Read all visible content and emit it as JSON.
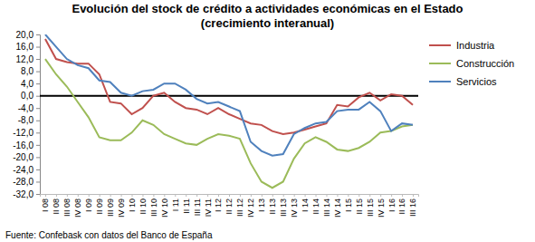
{
  "chart_data": {
    "type": "line",
    "title": "Evolución del  stock de crédito a actividades económicas en el Estado",
    "subtitle": "(crecimiento interanual)",
    "source": "Fuente: Confebask con datos del Banco de España",
    "categories": [
      "I 08",
      "II 08",
      "III 08",
      "IV 08",
      "I 09",
      "II 09",
      "III 09",
      "IV 09",
      "I 10",
      "II 10",
      "III 10",
      "IV 10",
      "I 11",
      "II 11",
      "III 11",
      "IV 11",
      "I 12",
      "II 12",
      "III 12",
      "IV 12",
      "I 13",
      "II 13",
      "III 13",
      "IV 13",
      "I 14",
      "II 14",
      "III 14",
      "IV 14",
      "I 15",
      "II 15",
      "III 15",
      "IV 15",
      "I 16",
      "II 16",
      "III 16"
    ],
    "series": [
      {
        "name": "Industria",
        "color": "#c0504d",
        "values": [
          18.5,
          12,
          11,
          10.5,
          10.5,
          7,
          -2,
          -2.5,
          -6,
          -4,
          0,
          1,
          -2,
          -4,
          -4.5,
          -6,
          -4,
          -6,
          -7.5,
          -9,
          -9.5,
          -11.5,
          -12.5,
          -12,
          -11,
          -10,
          -9,
          -3,
          -3.5,
          -0.5,
          1,
          -1.5,
          0.5,
          0,
          -3
        ]
      },
      {
        "name": "Construcción",
        "color": "#9bbb59",
        "values": [
          12,
          7,
          3,
          -2,
          -7,
          -13.5,
          -14.5,
          -14.5,
          -12,
          -8,
          -9.5,
          -12.5,
          -14,
          -15.5,
          -16,
          -14,
          -12.5,
          -13,
          -14,
          -22,
          -28,
          -30,
          -28,
          -20.5,
          -15.5,
          -13.5,
          -15,
          -17.5,
          -18,
          -17,
          -15,
          -12,
          -11.5,
          -10,
          -9.5
        ]
      },
      {
        "name": "Servicios",
        "color": "#4f81bd",
        "values": [
          20,
          16,
          12,
          10,
          9,
          5,
          4.5,
          1,
          0,
          1.5,
          2,
          4,
          4,
          2,
          -1,
          -2.5,
          -2,
          -3.5,
          -5,
          -15,
          -18,
          -19.5,
          -19,
          -12.5,
          -10.5,
          -9,
          -8.5,
          -5,
          -4.5,
          -4.5,
          -2,
          -5,
          -11.5,
          -9,
          -9.5
        ]
      }
    ],
    "ylim": [
      -32,
      20
    ],
    "yticks": [
      {
        "value": 20,
        "label": "20,0"
      },
      {
        "value": 16,
        "label": "16,0"
      },
      {
        "value": 12,
        "label": "12,0"
      },
      {
        "value": 8,
        "label": "8,0"
      },
      {
        "value": 4,
        "label": "4,0"
      },
      {
        "value": 0,
        "label": "0,0"
      },
      {
        "value": -4,
        "label": "-4,0"
      },
      {
        "value": -8,
        "label": "-8,0"
      },
      {
        "value": -12,
        "label": "-12,0"
      },
      {
        "value": -16,
        "label": "-16,0"
      },
      {
        "value": -20,
        "label": "-20,0"
      },
      {
        "value": -24,
        "label": "-24,0"
      },
      {
        "value": -28,
        "label": "-28,0"
      },
      {
        "value": -32,
        "label": "-32,0"
      }
    ],
    "grid": false,
    "legend": "right"
  }
}
